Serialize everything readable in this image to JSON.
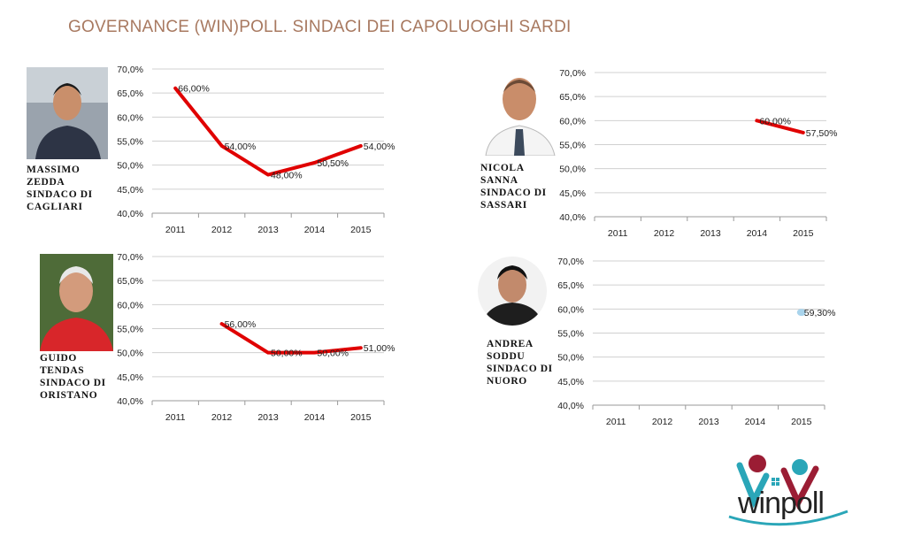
{
  "title": "GOVERNANCE (WIN)POLL. SINDACI DEI CAPOLUOGHI SARDI",
  "colors": {
    "title": "#a87960",
    "line": "#e00000",
    "marker": "#a9d4ec",
    "grid": "#d0d0d0",
    "axis": "#999999"
  },
  "mayors": [
    {
      "caption": [
        "MASSIMO",
        "ZEDDA",
        "SINDACO DI",
        "CAGLIARI"
      ]
    },
    {
      "caption": [
        "NICOLA",
        "SANNA",
        "SINDACO DI",
        "SASSARI"
      ]
    },
    {
      "caption": [
        "GUIDO",
        "TENDAS",
        "SINDACO DI",
        "ORISTANO"
      ]
    },
    {
      "caption": [
        "ANDREA",
        "SODDU",
        "SINDACO DI",
        "NUORO"
      ]
    }
  ],
  "chart_data": [
    {
      "type": "line",
      "categories": [
        "2011",
        "2012",
        "2013",
        "2014",
        "2015"
      ],
      "ylim": [
        40,
        70
      ],
      "yticks": [
        "40,0%",
        "45,0%",
        "50,0%",
        "55,0%",
        "60,0%",
        "65,0%",
        "70,0%"
      ],
      "series": [
        {
          "values": [
            66,
            54,
            48,
            50.5,
            54
          ],
          "labels": [
            "66,00%",
            "54,00%",
            "48,00%",
            "50,50%",
            "54,00%"
          ],
          "style": "line"
        }
      ],
      "grid": true
    },
    {
      "type": "line",
      "categories": [
        "2011",
        "2012",
        "2013",
        "2014",
        "2015"
      ],
      "ylim": [
        40,
        70
      ],
      "yticks": [
        "40,0%",
        "45,0%",
        "50,0%",
        "55,0%",
        "60,0%",
        "65,0%",
        "70,0%"
      ],
      "series": [
        {
          "values": [
            null,
            null,
            null,
            60,
            57.5
          ],
          "labels": [
            "",
            "",
            "",
            "60,00%",
            "57,50%"
          ],
          "style": "line"
        }
      ],
      "grid": true
    },
    {
      "type": "line",
      "categories": [
        "2011",
        "2012",
        "2013",
        "2014",
        "2015"
      ],
      "ylim": [
        40,
        70
      ],
      "yticks": [
        "40,0%",
        "45,0%",
        "50,0%",
        "55,0%",
        "60,0%",
        "65,0%",
        "70,0%"
      ],
      "series": [
        {
          "values": [
            null,
            56,
            50,
            50,
            51
          ],
          "labels": [
            "",
            "56,00%",
            "50,00%",
            "50,00%",
            "51,00%"
          ],
          "style": "line"
        }
      ],
      "grid": true
    },
    {
      "type": "line",
      "categories": [
        "2011",
        "2012",
        "2013",
        "2014",
        "2015"
      ],
      "ylim": [
        40,
        70
      ],
      "yticks": [
        "40,0%",
        "45,0%",
        "50,0%",
        "55,0%",
        "60,0%",
        "65,0%",
        "70,0%"
      ],
      "series": [
        {
          "values": [
            null,
            null,
            null,
            null,
            59.3
          ],
          "labels": [
            "",
            "",
            "",
            "",
            "59,30%"
          ],
          "style": "marker"
        }
      ],
      "grid": true
    }
  ],
  "logo": {
    "text": "winpoll"
  }
}
